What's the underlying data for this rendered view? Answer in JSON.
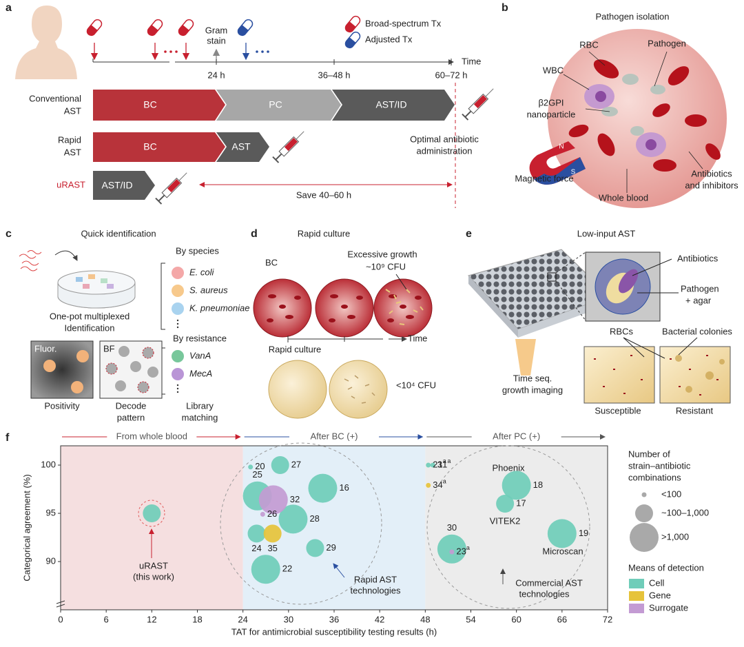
{
  "panel_a": {
    "letter": "a",
    "legend": [
      "Broad-spectrum Tx",
      "Adjusted Tx"
    ],
    "gram_stain": [
      "Gram",
      "stain"
    ],
    "times": [
      "24 h",
      "36–48 h",
      "60–72 h"
    ],
    "time_label": "Time",
    "conventional": {
      "label": [
        "Conventional",
        "AST"
      ],
      "steps": [
        "BC",
        "PC",
        "AST/ID"
      ]
    },
    "rapid": {
      "label": [
        "Rapid",
        "AST"
      ],
      "steps": [
        "BC",
        "AST"
      ]
    },
    "urast": {
      "label": "uRAST",
      "steps": [
        "AST/ID"
      ]
    },
    "save": "Save 40–60 h",
    "optimal": [
      "Optimal antibiotic",
      "administration"
    ]
  },
  "panel_b": {
    "letter": "b",
    "title": "Pathogen isolation",
    "rbc": "RBC",
    "pathogen": "Pathogen",
    "wbc": "WBC",
    "nanoparticle": [
      "β2GPI",
      "nanoparticle"
    ],
    "magnet": [
      "N",
      "S"
    ],
    "magnetic_force": "Magnetic force",
    "whole_blood": "Whole blood",
    "antibiotics": [
      "Antibiotics",
      "and inhibitors"
    ]
  },
  "panel_c": {
    "letter": "c",
    "title": "Quick identification",
    "one_pot": [
      "One-pot multiplexed",
      "Identification"
    ],
    "by_species": "By species",
    "species": [
      "E. coli",
      "S. aureus",
      "K. pneumoniae"
    ],
    "by_resistance": "By resistance",
    "genes": [
      "VanA",
      "MecA"
    ],
    "fluor": "Fluor.",
    "bf": "BF",
    "positivity": "Positivity",
    "decode": [
      "Decode",
      "pattern"
    ],
    "library": [
      "Library",
      "matching"
    ]
  },
  "panel_d": {
    "letter": "d",
    "title": "Rapid culture",
    "bc": "BC",
    "excessive": [
      "Excessive growth",
      "~10⁹ CFU"
    ],
    "time": "Time",
    "rapid": "Rapid culture",
    "low": "<10⁴ CFU"
  },
  "panel_e": {
    "letter": "e",
    "title": "Low-input AST",
    "antibiotics": "Antibiotics",
    "pathogen": [
      "Pathogen",
      "+ agar"
    ],
    "imaging": [
      "Time seq.",
      "growth imaging"
    ],
    "rbcs": "RBCs",
    "colonies": "Bacterial colonies",
    "susceptible": "Susceptible",
    "resistant": "Resistant"
  },
  "panel_f_letter": "f",
  "chart_data": {
    "type": "scatter",
    "xlabel": "TAT for antimicrobial susceptibility testing results (h)",
    "ylabel": "Categorical agreement (%)",
    "xlim": [
      0,
      72
    ],
    "xticks": [
      0,
      6,
      12,
      18,
      24,
      30,
      36,
      42,
      48,
      54,
      60,
      66,
      72
    ],
    "ylim": [
      85,
      102
    ],
    "yticks": [
      90,
      95,
      100
    ],
    "regions": [
      {
        "label": "From whole blood",
        "from": 0,
        "to": 24,
        "color": "#f5dfe0",
        "arrow": "#c8202f"
      },
      {
        "label": "After BC (+)",
        "from": 24,
        "to": 48,
        "color": "#e3eff8",
        "arrow": "#2a4fa0"
      },
      {
        "label": "After PC (+)",
        "from": 48,
        "to": 72,
        "color": "#ececec",
        "arrow": "#555555"
      }
    ],
    "size_title": [
      "Number of",
      "strain–antibiotic",
      "combinations"
    ],
    "size_legend": [
      "<100",
      "~100–1,000",
      ">1,000"
    ],
    "legend_title": "Means of detection",
    "series": [
      {
        "name": "Cell",
        "color": "#6fcdb9",
        "x": [
          12,
          25,
          28.9,
          25.9,
          34.5,
          30.6,
          25.8,
          33.5,
          27,
          48.4,
          49,
          60,
          58.5,
          66,
          51.5
        ],
        "values": [
          95,
          99.8,
          100,
          96.8,
          97.6,
          94.4,
          92.9,
          91.4,
          89.2,
          100,
          100,
          97.9,
          96,
          92.9,
          91.3
        ],
        "sizes": [
          "~100–1,000",
          "<100",
          "~100–1,000",
          ">1,000",
          ">1,000",
          ">1,000",
          "~100–1,000",
          "~100–1,000",
          ">1,000",
          "<100",
          "<100",
          ">1,000",
          "~100–1,000",
          ">1,000",
          ">1,000"
        ],
        "labels": [
          null,
          "20",
          "27",
          "25",
          "16",
          "28",
          "24",
          "29",
          "22",
          "21",
          "31",
          "18",
          "17",
          "19",
          "30"
        ],
        "label_notes": [
          null,
          null,
          null,
          null,
          null,
          null,
          null,
          null,
          null,
          "a",
          "a",
          null,
          null,
          null,
          null
        ]
      },
      {
        "name": "Gene",
        "color": "#e6c33a",
        "x": [
          27.9,
          48.4
        ],
        "values": [
          92.9,
          97.9
        ],
        "sizes": [
          "~100–1,000",
          "<100"
        ],
        "labels": [
          "35",
          "34"
        ],
        "label_notes": [
          null,
          "a"
        ]
      },
      {
        "name": "Surrogate",
        "color": "#c39bd3",
        "x": [
          28,
          26.6,
          51.5
        ],
        "values": [
          96.4,
          94.9,
          91
        ],
        "sizes": [
          ">1,000",
          "<100",
          "<100"
        ],
        "labels": [
          "32",
          "26",
          "23"
        ],
        "label_notes": [
          null,
          null,
          "a"
        ]
      }
    ],
    "annotations": {
      "urast": [
        "uRAST",
        "(this work)"
      ],
      "rapid": [
        "Rapid AST",
        "technologies"
      ],
      "commercial": [
        "Commercial AST",
        "technologies"
      ],
      "phoenix": "Phoenix",
      "vitek": "VITEK2",
      "microscan": "Microscan"
    }
  }
}
